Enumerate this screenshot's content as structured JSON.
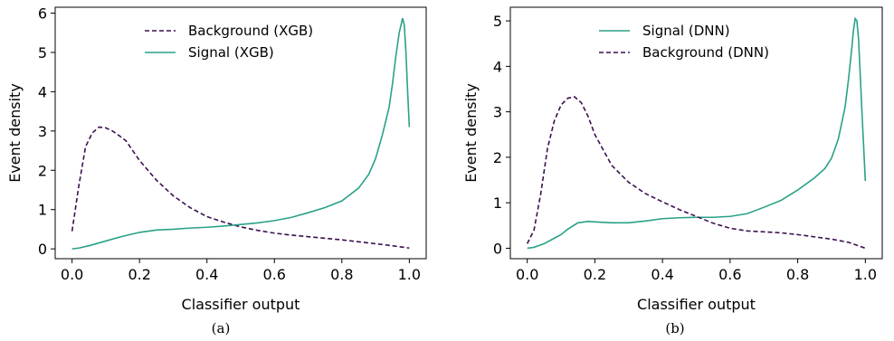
{
  "chart_data": [
    {
      "type": "line",
      "caption": "(a)",
      "xlabel": "Classifier output",
      "ylabel": "Event density",
      "xlim": [
        -0.05,
        1.05
      ],
      "ylim": [
        -0.25,
        6.15
      ],
      "xticks": [
        0.0,
        0.2,
        0.4,
        0.6,
        0.8,
        1.0
      ],
      "xtick_labels": [
        "0.0",
        "0.2",
        "0.4",
        "0.6",
        "0.8",
        "1.0"
      ],
      "yticks": [
        0,
        1,
        2,
        3,
        4,
        5,
        6
      ],
      "ytick_labels": [
        "0",
        "1",
        "2",
        "3",
        "4",
        "5",
        "6"
      ],
      "legend_position": "top-center",
      "series": [
        {
          "name": "Background (XGB)",
          "color": "#3b0f4f",
          "style": "dashed",
          "x": [
            0.0,
            0.02,
            0.04,
            0.06,
            0.08,
            0.1,
            0.12,
            0.14,
            0.16,
            0.18,
            0.2,
            0.25,
            0.3,
            0.35,
            0.4,
            0.45,
            0.5,
            0.55,
            0.6,
            0.65,
            0.7,
            0.75,
            0.8,
            0.85,
            0.9,
            0.95,
            1.0
          ],
          "y": [
            0.45,
            1.6,
            2.6,
            2.95,
            3.1,
            3.08,
            3.0,
            2.88,
            2.75,
            2.5,
            2.25,
            1.75,
            1.35,
            1.05,
            0.82,
            0.68,
            0.56,
            0.47,
            0.4,
            0.35,
            0.31,
            0.27,
            0.23,
            0.18,
            0.13,
            0.08,
            0.02
          ]
        },
        {
          "name": "Signal (XGB)",
          "color": "#2aa188",
          "style": "solid",
          "x": [
            0.0,
            0.02,
            0.05,
            0.1,
            0.15,
            0.2,
            0.25,
            0.3,
            0.35,
            0.4,
            0.45,
            0.5,
            0.55,
            0.6,
            0.65,
            0.7,
            0.75,
            0.8,
            0.85,
            0.88,
            0.9,
            0.92,
            0.94,
            0.95,
            0.96,
            0.97,
            0.98,
            0.985,
            0.99,
            0.995,
            1.0
          ],
          "y": [
            0.0,
            0.02,
            0.08,
            0.2,
            0.32,
            0.42,
            0.48,
            0.5,
            0.53,
            0.55,
            0.58,
            0.62,
            0.66,
            0.72,
            0.8,
            0.92,
            1.05,
            1.22,
            1.55,
            1.9,
            2.3,
            2.9,
            3.6,
            4.2,
            4.9,
            5.5,
            5.87,
            5.7,
            5.0,
            4.0,
            3.1
          ]
        }
      ]
    },
    {
      "type": "line",
      "caption": "(b)",
      "xlabel": "Classifier output",
      "ylabel": "Event density",
      "xlim": [
        -0.05,
        1.05
      ],
      "ylim": [
        -0.23,
        5.3
      ],
      "xticks": [
        0.0,
        0.2,
        0.4,
        0.6,
        0.8,
        1.0
      ],
      "xtick_labels": [
        "0.0",
        "0.2",
        "0.4",
        "0.6",
        "0.8",
        "1.0"
      ],
      "yticks": [
        0,
        1,
        2,
        3,
        4,
        5
      ],
      "ytick_labels": [
        "0",
        "1",
        "2",
        "3",
        "4",
        "5"
      ],
      "legend_position": "top-center",
      "series": [
        {
          "name": "Signal (DNN)",
          "color": "#2aa188",
          "style": "solid",
          "x": [
            0.0,
            0.02,
            0.05,
            0.08,
            0.1,
            0.12,
            0.15,
            0.18,
            0.2,
            0.25,
            0.3,
            0.35,
            0.4,
            0.45,
            0.5,
            0.55,
            0.6,
            0.65,
            0.7,
            0.75,
            0.8,
            0.85,
            0.88,
            0.9,
            0.92,
            0.94,
            0.95,
            0.96,
            0.965,
            0.97,
            0.975,
            0.98,
            0.99,
            1.0
          ],
          "y": [
            0.0,
            0.02,
            0.1,
            0.22,
            0.3,
            0.42,
            0.56,
            0.59,
            0.58,
            0.56,
            0.56,
            0.6,
            0.65,
            0.67,
            0.68,
            0.68,
            0.7,
            0.76,
            0.9,
            1.05,
            1.28,
            1.55,
            1.75,
            1.98,
            2.4,
            3.1,
            3.7,
            4.4,
            4.8,
            5.05,
            5.0,
            4.6,
            3.0,
            1.48
          ]
        },
        {
          "name": "Background (DNN)",
          "color": "#3b0f4f",
          "style": "dashed",
          "x": [
            0.0,
            0.02,
            0.04,
            0.06,
            0.08,
            0.1,
            0.12,
            0.14,
            0.16,
            0.18,
            0.2,
            0.25,
            0.3,
            0.35,
            0.4,
            0.45,
            0.5,
            0.55,
            0.6,
            0.65,
            0.7,
            0.75,
            0.8,
            0.85,
            0.9,
            0.95,
            1.0
          ],
          "y": [
            0.1,
            0.4,
            1.2,
            2.2,
            2.8,
            3.15,
            3.3,
            3.33,
            3.2,
            2.9,
            2.5,
            1.82,
            1.45,
            1.2,
            1.02,
            0.85,
            0.7,
            0.55,
            0.44,
            0.38,
            0.36,
            0.34,
            0.3,
            0.25,
            0.2,
            0.13,
            0.0
          ]
        }
      ]
    }
  ]
}
